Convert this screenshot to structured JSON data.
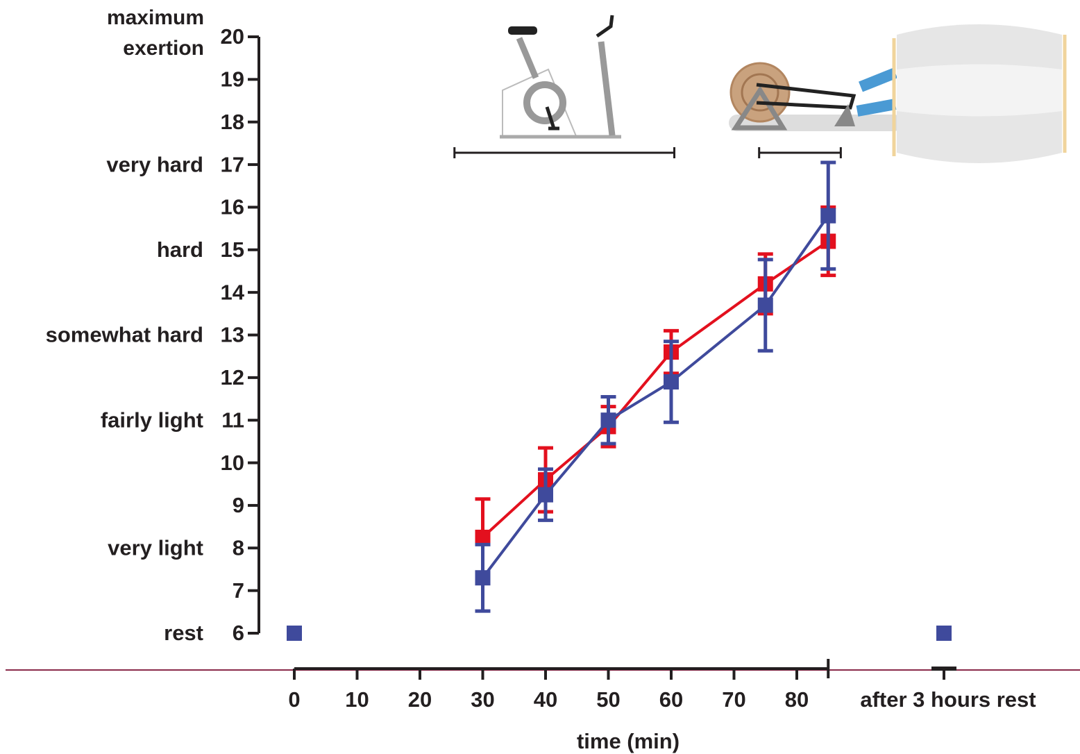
{
  "chart_data": {
    "type": "line",
    "x_label": "time (min)",
    "x": [
      30,
      40,
      50,
      60,
      75,
      85
    ],
    "series": [
      {
        "color": "#e3101e",
        "values": [
          8.25,
          9.6,
          10.85,
          12.6,
          14.2,
          15.2
        ],
        "errors": [
          0.9,
          0.75,
          0.47,
          0.5,
          0.7,
          0.8
        ]
      },
      {
        "color": "#3f4a9c",
        "values": [
          7.3,
          9.25,
          11.0,
          11.9,
          13.7,
          15.8
        ],
        "errors": [
          0.78,
          0.6,
          0.55,
          0.95,
          1.07,
          1.25
        ]
      }
    ],
    "markers": [
      {
        "x": 0,
        "value": 6,
        "color": "#3f4a9c"
      },
      {
        "category": "after 3 hours rest",
        "value": 6,
        "color": "#3f4a9c"
      }
    ],
    "phases": [
      {
        "start": 25.5,
        "end": 60.5
      },
      {
        "start": 74,
        "end": 87
      }
    ],
    "xlim": [
      0,
      85
    ],
    "xticks": [
      0,
      10,
      20,
      30,
      40,
      50,
      60,
      70,
      80
    ],
    "ylim": [
      6,
      20
    ],
    "yticks": [
      6,
      7,
      8,
      9,
      10,
      11,
      12,
      13,
      14,
      15,
      16,
      17,
      18,
      19,
      20
    ],
    "y_descriptors": [
      {
        "value": 20,
        "label": "maximum exertion"
      },
      {
        "value": 17,
        "label": "very hard"
      },
      {
        "value": 15,
        "label": "hard"
      },
      {
        "value": 13,
        "label": "somewhat hard"
      },
      {
        "value": 11,
        "label": "fairly light"
      },
      {
        "value": 8,
        "label": "very light"
      },
      {
        "value": 6,
        "label": "rest"
      }
    ]
  }
}
